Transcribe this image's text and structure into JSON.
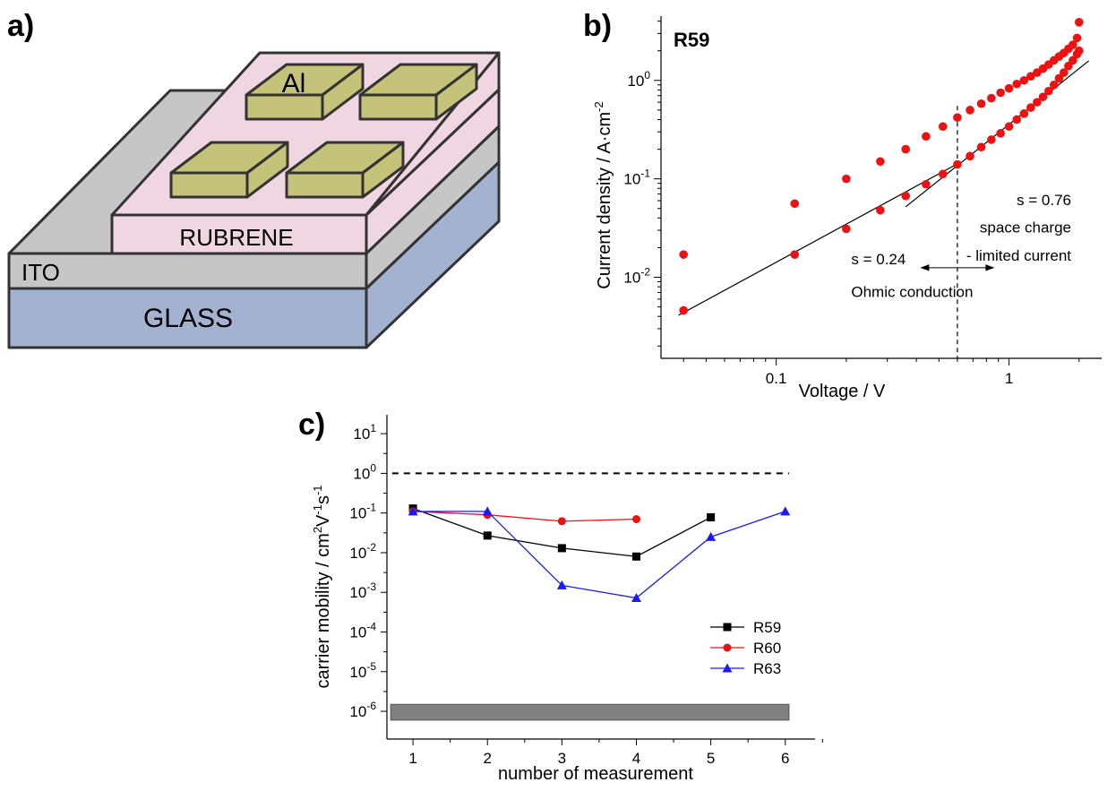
{
  "panels": {
    "a": {
      "label": "a)",
      "layers": {
        "glass": "GLASS",
        "ito": "ITO",
        "rubrene": "RUBRENE",
        "electrode": "Al"
      },
      "colors": {
        "glass": "#a4b2d2",
        "ito": "#c6c6c6",
        "rubrene": "#f0d6e0",
        "electrode": "#c5c27a",
        "outline": "#333333"
      }
    },
    "b": {
      "label": "b)",
      "sample": "R59",
      "divider_voltage": 0.6
    },
    "c": {
      "label": "c)",
      "reference_line": 1
    }
  },
  "chart_data": [
    {
      "type": "scatter",
      "panel": "b",
      "title": "R59",
      "xlabel": "Voltage / V",
      "ylabel": "Current density / A·cm",
      "ylabel_sup": "-2",
      "xscale": "log",
      "yscale": "log",
      "xlim": [
        0.032,
        2.5
      ],
      "ylim": [
        0.0015,
        4.5
      ],
      "xticks": [
        0.1,
        1
      ],
      "xtick_labels": [
        "0.1",
        "1"
      ],
      "yticks": [
        0.01,
        0.1,
        1
      ],
      "ytick_labels": [
        {
          "base": "10",
          "exp": "-2"
        },
        {
          "base": "10",
          "exp": "-1"
        },
        {
          "base": "10",
          "exp": "0"
        }
      ],
      "marker_color": "#ee1111",
      "series": [
        {
          "x": [
            0.04,
            0.12,
            0.2,
            0.28,
            0.36,
            0.44,
            0.52,
            0.6,
            0.68,
            0.76,
            0.84,
            0.92,
            1.0,
            1.08,
            1.16,
            1.24,
            1.32,
            1.4,
            1.48,
            1.56,
            1.64,
            1.72,
            1.8,
            1.88,
            1.96,
            2.0
          ],
          "y": [
            0.0046,
            0.017,
            0.031,
            0.048,
            0.067,
            0.088,
            0.112,
            0.14,
            0.17,
            0.21,
            0.25,
            0.29,
            0.34,
            0.4,
            0.46,
            0.53,
            0.6,
            0.68,
            0.78,
            0.9,
            1.05,
            1.2,
            1.4,
            1.6,
            1.85,
            2.0
          ]
        },
        {
          "x": [
            0.04,
            0.12,
            0.2,
            0.28,
            0.36,
            0.44,
            0.52,
            0.6,
            0.68,
            0.76,
            0.84,
            0.92,
            1.0,
            1.08,
            1.16,
            1.24,
            1.32,
            1.4,
            1.48,
            1.56,
            1.64,
            1.72,
            1.8,
            1.88,
            1.96,
            2.0
          ],
          "y": [
            0.017,
            0.056,
            0.1,
            0.15,
            0.2,
            0.27,
            0.34,
            0.42,
            0.5,
            0.58,
            0.66,
            0.75,
            0.83,
            0.92,
            1.0,
            1.1,
            1.2,
            1.32,
            1.45,
            1.6,
            1.75,
            1.9,
            2.1,
            2.3,
            2.7,
            3.9
          ]
        }
      ],
      "fit_lines": [
        {
          "x": [
            0.038,
            0.6
          ],
          "y": [
            0.0041,
            0.142
          ]
        },
        {
          "x": [
            0.36,
            2.2
          ],
          "y": [
            0.052,
            1.58
          ]
        }
      ],
      "annotations": [
        {
          "text": "s = 0.24",
          "x": 0.21,
          "y": 0.0135
        },
        {
          "text": "Ohmic conduction",
          "x": 0.21,
          "y": 0.0063
        },
        {
          "text": "s = 0.76",
          "x": 1.85,
          "y": 0.054
        },
        {
          "text": "space charge",
          "x": 1.85,
          "y": 0.0285
        },
        {
          "text": "- limited current",
          "x": 1.85,
          "y": 0.0147
        }
      ]
    },
    {
      "type": "line",
      "panel": "c",
      "xlabel": "number of measurement",
      "ylabel_parts": [
        "carrier mobility / cm",
        "2",
        "V",
        "-1",
        "s",
        "-1"
      ],
      "yscale": "log",
      "xlim": [
        0.65,
        6.4
      ],
      "ylim": [
        2e-07,
        30
      ],
      "xticks": [
        1,
        2,
        3,
        4,
        5,
        6
      ],
      "xtick_labels": [
        "1",
        "2",
        "3",
        "4",
        "5",
        "6"
      ],
      "yticks": [
        1e-06,
        1e-05,
        0.0001,
        0.001,
        0.01,
        0.1,
        1,
        10
      ],
      "ytick_labels": [
        {
          "base": "10",
          "exp": "-6"
        },
        {
          "base": "10",
          "exp": "-5"
        },
        {
          "base": "10",
          "exp": "-4"
        },
        {
          "base": "10",
          "exp": "-3"
        },
        {
          "base": "10",
          "exp": "-2"
        },
        {
          "base": "10",
          "exp": "-1"
        },
        {
          "base": "10",
          "exp": "0"
        },
        {
          "base": "10",
          "exp": "1"
        }
      ],
      "legend_position": "bottom-right",
      "series": [
        {
          "name": "R59",
          "color": "#000000",
          "marker": "square",
          "x": [
            1,
            2,
            3,
            4,
            5
          ],
          "y": [
            0.13,
            0.027,
            0.013,
            0.008,
            0.078
          ]
        },
        {
          "name": "R60",
          "color": "#ee1111",
          "marker": "circle",
          "x": [
            1,
            2,
            3,
            4
          ],
          "y": [
            0.11,
            0.09,
            0.062,
            0.07
          ]
        },
        {
          "name": "R63",
          "color": "#1a1aff",
          "marker": "triangle",
          "x": [
            1,
            2,
            3,
            4,
            5,
            6
          ],
          "y": [
            0.11,
            0.11,
            0.0015,
            0.00072,
            0.025,
            0.11
          ]
        }
      ],
      "band": {
        "x": [
          0.7,
          6.05
        ],
        "y": [
          6e-07,
          1.5e-06
        ],
        "color": "#808080"
      }
    }
  ]
}
